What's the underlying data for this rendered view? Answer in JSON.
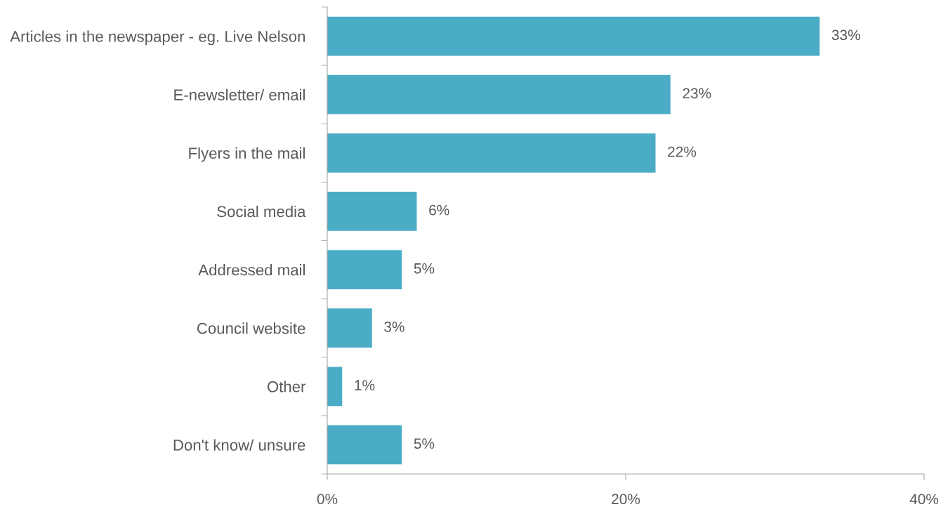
{
  "chart_data": {
    "type": "bar",
    "orientation": "horizontal",
    "categories": [
      "Articles in the newspaper - eg. Live Nelson",
      "E-newsletter/ email",
      "Flyers in the mail",
      "Social media",
      "Addressed mail",
      "Council website",
      "Other",
      "Don't know/ unsure"
    ],
    "values": [
      33,
      23,
      22,
      6,
      5,
      3,
      1,
      5
    ],
    "color": "#4bacc6",
    "xlim": [
      0,
      40
    ],
    "xticks": [
      {
        "value": 0,
        "label": "0%"
      },
      {
        "value": 20,
        "label": "20%"
      },
      {
        "value": 40,
        "label": "40%"
      }
    ],
    "value_labels": [
      "33%",
      "23%",
      "22%",
      "6%",
      "5%",
      "3%",
      "1%",
      "5%"
    ],
    "grid": false,
    "legend": false
  }
}
